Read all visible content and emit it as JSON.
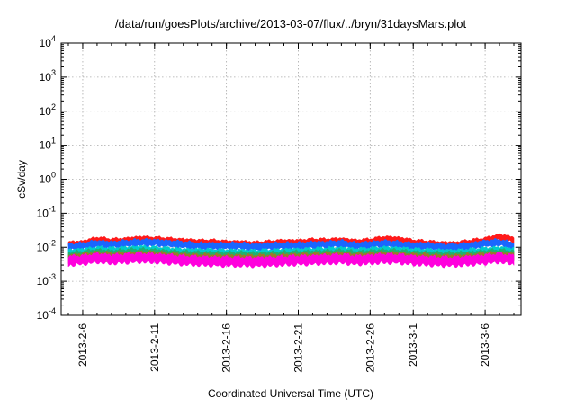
{
  "chart_data": {
    "type": "area",
    "title": "/data/run/goesPlots/archive/2013-03-07/flux/../bryn/31daysMars.plot",
    "xlabel": "Coordinated Universal Time (UTC)",
    "ylabel": "cSv/day",
    "y_scale": "log",
    "ylim": [
      0.0001,
      10000
    ],
    "y_ticks": [
      {
        "value": 0.0001,
        "base": "10",
        "exp": "-4"
      },
      {
        "value": 0.001,
        "base": "10",
        "exp": "-3"
      },
      {
        "value": 0.01,
        "base": "10",
        "exp": "-2"
      },
      {
        "value": 0.1,
        "base": "10",
        "exp": "-1"
      },
      {
        "value": 1,
        "base": "10",
        "exp": "0"
      },
      {
        "value": 10,
        "base": "10",
        "exp": "1"
      },
      {
        "value": 100,
        "base": "10",
        "exp": "2"
      },
      {
        "value": 1000,
        "base": "10",
        "exp": "3"
      },
      {
        "value": 10000,
        "base": "10",
        "exp": "4"
      }
    ],
    "xlim": [
      "2013-02-04T12:00",
      "2013-03-08T12:00"
    ],
    "x_tick_labels": [
      "2013-2-6",
      "2013-2-11",
      "2013-2-16",
      "2013-2-21",
      "2013-2-26",
      "2013-3-1",
      "2013-3-6"
    ],
    "x_tick_dates": [
      "2013-02-06",
      "2013-02-11",
      "2013-02-16",
      "2013-02-21",
      "2013-02-26",
      "2013-03-01",
      "2013-03-06"
    ],
    "grid": true,
    "x": [
      "2013-02-05",
      "2013-02-06",
      "2013-02-07",
      "2013-02-08",
      "2013-02-09",
      "2013-02-10",
      "2013-02-11",
      "2013-02-12",
      "2013-02-13",
      "2013-02-14",
      "2013-02-15",
      "2013-02-16",
      "2013-02-17",
      "2013-02-18",
      "2013-02-19",
      "2013-02-20",
      "2013-02-21",
      "2013-02-22",
      "2013-02-23",
      "2013-02-24",
      "2013-02-25",
      "2013-02-26",
      "2013-02-27",
      "2013-02-28",
      "2013-03-01",
      "2013-03-02",
      "2013-03-03",
      "2013-03-04",
      "2013-03-05",
      "2013-03-06",
      "2013-03-07",
      "2013-03-08"
    ],
    "series": [
      {
        "color": "#ff1a1a",
        "values": [
          0.013,
          0.014,
          0.018,
          0.016,
          0.017,
          0.019,
          0.018,
          0.017,
          0.016,
          0.015,
          0.015,
          0.014,
          0.014,
          0.013,
          0.014,
          0.015,
          0.015,
          0.016,
          0.016,
          0.017,
          0.015,
          0.016,
          0.019,
          0.018,
          0.015,
          0.014,
          0.013,
          0.013,
          0.015,
          0.017,
          0.022,
          0.018
        ]
      },
      {
        "color": "#1a66ff",
        "values": [
          0.011,
          0.012,
          0.014,
          0.013,
          0.014,
          0.015,
          0.015,
          0.014,
          0.013,
          0.012,
          0.012,
          0.012,
          0.012,
          0.011,
          0.012,
          0.012,
          0.012,
          0.013,
          0.013,
          0.014,
          0.012,
          0.013,
          0.014,
          0.013,
          0.012,
          0.012,
          0.011,
          0.011,
          0.012,
          0.014,
          0.015,
          0.012
        ]
      },
      {
        "color": "#00cccc",
        "values": [
          0.0075,
          0.008,
          0.009,
          0.0085,
          0.009,
          0.0095,
          0.009,
          0.0085,
          0.008,
          0.0078,
          0.0077,
          0.0075,
          0.0075,
          0.0072,
          0.0075,
          0.0078,
          0.008,
          0.0082,
          0.0085,
          0.0088,
          0.008,
          0.0085,
          0.009,
          0.0088,
          0.008,
          0.0078,
          0.0074,
          0.0074,
          0.0078,
          0.0085,
          0.009,
          0.0082
        ]
      },
      {
        "color": "#20b070",
        "values": [
          0.0062,
          0.0066,
          0.0075,
          0.007,
          0.0074,
          0.0078,
          0.0075,
          0.007,
          0.0066,
          0.0064,
          0.0063,
          0.0062,
          0.0062,
          0.006,
          0.0062,
          0.0064,
          0.0066,
          0.0068,
          0.007,
          0.0072,
          0.0066,
          0.007,
          0.0074,
          0.0072,
          0.0066,
          0.0064,
          0.0061,
          0.0061,
          0.0064,
          0.007,
          0.0074,
          0.0068
        ]
      },
      {
        "color": "#9b7a2a",
        "values": [
          0.0052,
          0.0055,
          0.0062,
          0.0058,
          0.0061,
          0.0064,
          0.0062,
          0.0058,
          0.0055,
          0.0053,
          0.0052,
          0.0051,
          0.0051,
          0.005,
          0.0051,
          0.0053,
          0.0055,
          0.0056,
          0.0058,
          0.006,
          0.0055,
          0.0058,
          0.0061,
          0.006,
          0.0055,
          0.0053,
          0.0051,
          0.0051,
          0.0053,
          0.0058,
          0.0062,
          0.0056
        ]
      },
      {
        "color": "#ff00dd",
        "values": [
          0.0045,
          0.0048,
          0.0055,
          0.005,
          0.0053,
          0.0056,
          0.0054,
          0.005,
          0.0047,
          0.0045,
          0.0044,
          0.0043,
          0.0043,
          0.0042,
          0.0043,
          0.0045,
          0.0047,
          0.0048,
          0.005,
          0.0052,
          0.0047,
          0.005,
          0.0053,
          0.0052,
          0.0047,
          0.0045,
          0.0043,
          0.0043,
          0.0046,
          0.005,
          0.0055,
          0.0048
        ]
      }
    ]
  }
}
